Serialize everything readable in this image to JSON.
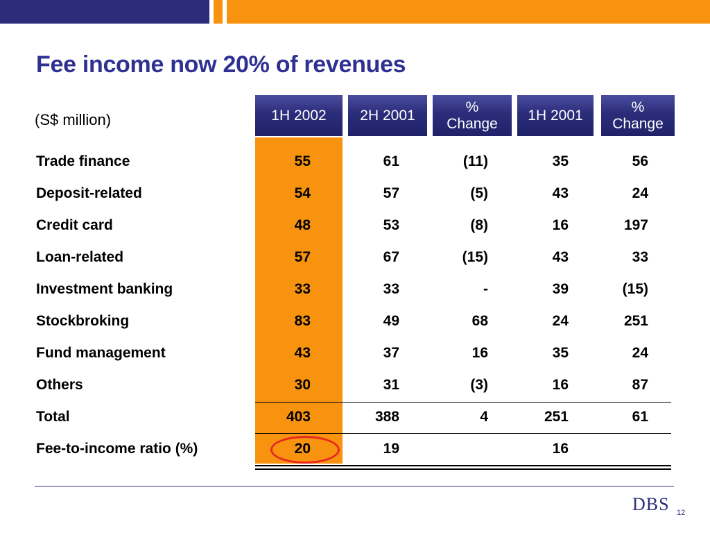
{
  "title": "Fee income now 20% of revenues",
  "units": "(S$ million)",
  "columns": [
    "1H 2002",
    "2H 2001",
    "% Change",
    "1H 2001",
    "% Change"
  ],
  "rows": [
    {
      "label": "Trade finance",
      "values": [
        "55",
        "61",
        "(11)",
        "35",
        "56"
      ]
    },
    {
      "label": "Deposit-related",
      "values": [
        "54",
        "57",
        "(5)",
        "43",
        "24"
      ]
    },
    {
      "label": "Credit card",
      "values": [
        "48",
        "53",
        "(8)",
        "16",
        "197"
      ]
    },
    {
      "label": "Loan-related",
      "values": [
        "57",
        "67",
        "(15)",
        "43",
        "33"
      ]
    },
    {
      "label": "Investment banking",
      "values": [
        "33",
        "33",
        "-",
        "39",
        "(15)"
      ]
    },
    {
      "label": "Stockbroking",
      "values": [
        "83",
        "49",
        "68",
        "24",
        "251"
      ]
    },
    {
      "label": "Fund management",
      "values": [
        "43",
        "37",
        "16",
        "35",
        "24"
      ]
    },
    {
      "label": "Others",
      "values": [
        "30",
        "31",
        "(3)",
        "16",
        "87"
      ]
    },
    {
      "label": "Total",
      "values": [
        "403",
        "388",
        "4",
        "251",
        "61"
      ]
    },
    {
      "label": "Fee-to-income ratio (%)",
      "values": [
        "20",
        "19",
        "",
        "16",
        ""
      ]
    }
  ],
  "footer": {
    "logo": "DBS",
    "page_number": "12"
  },
  "colors": {
    "navy": "#2b2d7a",
    "orange": "#f7930f",
    "title": "#2f3192",
    "highlight_circle": "#e8281e"
  }
}
